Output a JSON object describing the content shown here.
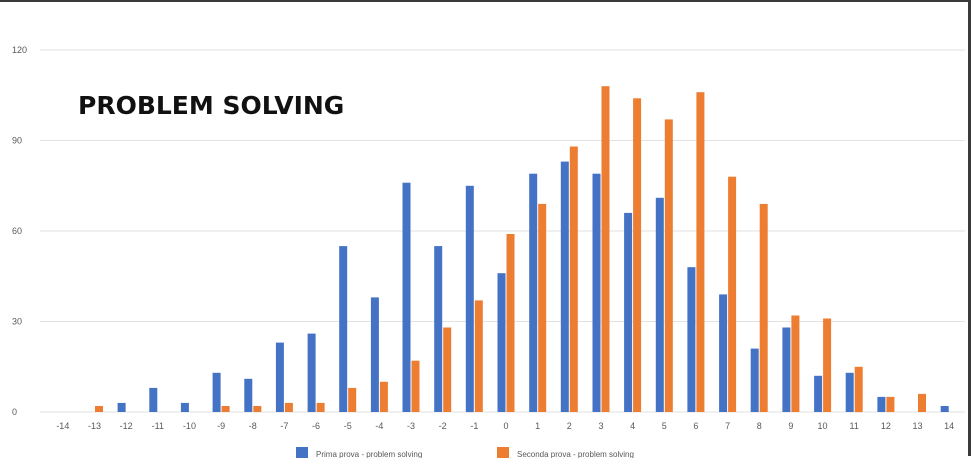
{
  "chart_data": {
    "type": "bar",
    "title": "PROBLEM SOLVING",
    "xlabel": "",
    "ylabel": "",
    "ylim": [
      0,
      120
    ],
    "yticks": [
      0,
      30,
      60,
      90,
      120
    ],
    "categories": [
      "-14",
      "-13",
      "-12",
      "-11",
      "-10",
      "-9",
      "-8",
      "-7",
      "-6",
      "-5",
      "-4",
      "-3",
      "-2",
      "-1",
      "0",
      "1",
      "2",
      "3",
      "4",
      "5",
      "6",
      "7",
      "8",
      "9",
      "10",
      "11",
      "12",
      "13",
      "14"
    ],
    "series": [
      {
        "name": "Prima prova - problem solving",
        "color": "#4472C4",
        "values": [
          0,
          0,
          3,
          8,
          3,
          13,
          11,
          23,
          26,
          55,
          38,
          76,
          55,
          75,
          46,
          79,
          83,
          79,
          66,
          71,
          48,
          39,
          21,
          28,
          12,
          13,
          5,
          0,
          2
        ]
      },
      {
        "name": "Seconda prova - problem solving",
        "color": "#ED7D31",
        "values": [
          0,
          2,
          0,
          0,
          0,
          2,
          2,
          3,
          3,
          8,
          10,
          17,
          28,
          37,
          59,
          69,
          88,
          108,
          104,
          97,
          106,
          78,
          69,
          32,
          31,
          15,
          5,
          6,
          0
        ]
      }
    ],
    "grid": true,
    "legend_position": "bottom-center"
  }
}
